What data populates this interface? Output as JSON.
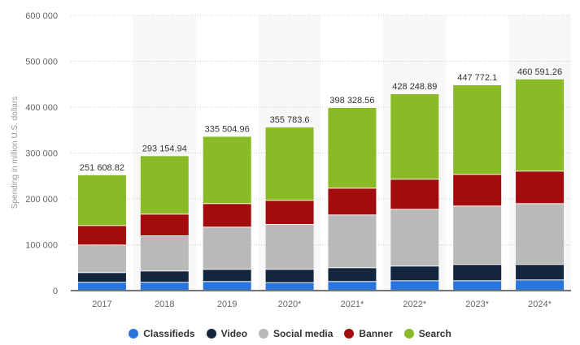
{
  "chart_data": {
    "type": "bar",
    "stacked": true,
    "title": "",
    "xlabel": "",
    "ylabel": "Spending in million U.S. dollars",
    "ylim": [
      0,
      600000
    ],
    "y_ticks": [
      0,
      100000,
      200000,
      300000,
      400000,
      500000,
      600000
    ],
    "y_tick_labels": [
      "0",
      "100 000",
      "200 000",
      "300 000",
      "400 000",
      "500 000",
      "600 000"
    ],
    "grid": true,
    "legend_position": "bottom",
    "categories": [
      "2017",
      "2018",
      "2019",
      "2020*",
      "2021*",
      "2022*",
      "2023*",
      "2024*"
    ],
    "totals": [
      251608.82,
      293154.94,
      335504.96,
      355783.6,
      398328.56,
      428248.89,
      447772.1,
      460591.26
    ],
    "total_labels": [
      "251 608.82",
      "293 154.94",
      "335 504.96",
      "355 783.6",
      "398 328.56",
      "428 248.89",
      "447 772.1",
      "460 591.26"
    ],
    "series": [
      {
        "name": "Classifieds",
        "color": "#2876dd",
        "values": [
          17200,
          17200,
          18900,
          16500,
          18900,
          20600,
          20600,
          22400
        ]
      },
      {
        "name": "Video",
        "color": "#13263e",
        "values": [
          21200,
          24700,
          26600,
          29000,
          30100,
          32000,
          35500,
          33700
        ]
      },
      {
        "name": "Social media",
        "color": "#b9b9b9",
        "values": [
          60200,
          76700,
          92000,
          97900,
          115000,
          123800,
          127400,
          132700
        ]
      },
      {
        "name": "Banner",
        "color": "#a30b0d",
        "values": [
          42400,
          47200,
          51300,
          52500,
          58400,
          65500,
          69000,
          70800
        ]
      },
      {
        "name": "Search",
        "color": "#8aba25",
        "values": [
          110609,
          127355,
          146705,
          159884,
          175929,
          186349,
          195272,
          200991
        ]
      }
    ]
  }
}
